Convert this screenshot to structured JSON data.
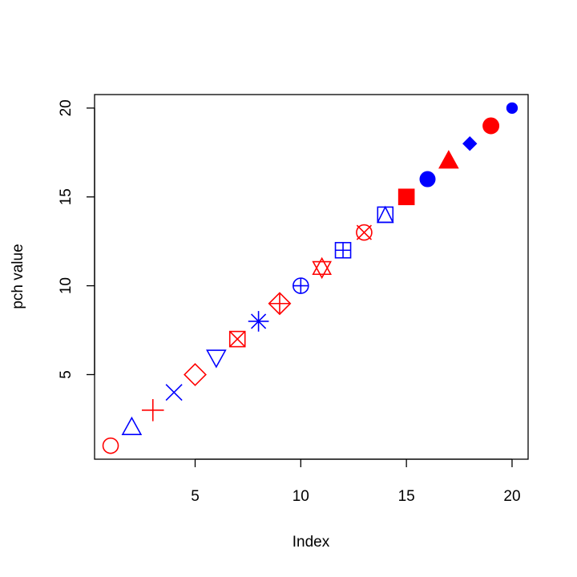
{
  "chart_data": {
    "type": "scatter",
    "title": "",
    "xlabel": "Index",
    "ylabel": "pch value",
    "xlim": [
      0.24,
      20.76
    ],
    "ylim": [
      0.24,
      20.76
    ],
    "x_ticks": [
      5,
      10,
      15,
      20
    ],
    "y_ticks": [
      5,
      10,
      15,
      20
    ],
    "grid": false,
    "legend": "none",
    "colors": {
      "red": "#FF0000",
      "blue": "#0000FF"
    },
    "points": [
      {
        "x": 1,
        "y": 1,
        "pch": 1,
        "color": "red"
      },
      {
        "x": 2,
        "y": 2,
        "pch": 2,
        "color": "blue"
      },
      {
        "x": 3,
        "y": 3,
        "pch": 3,
        "color": "red"
      },
      {
        "x": 4,
        "y": 4,
        "pch": 4,
        "color": "blue"
      },
      {
        "x": 5,
        "y": 5,
        "pch": 5,
        "color": "red"
      },
      {
        "x": 6,
        "y": 6,
        "pch": 6,
        "color": "blue"
      },
      {
        "x": 7,
        "y": 7,
        "pch": 7,
        "color": "red"
      },
      {
        "x": 8,
        "y": 8,
        "pch": 8,
        "color": "blue"
      },
      {
        "x": 9,
        "y": 9,
        "pch": 9,
        "color": "red"
      },
      {
        "x": 10,
        "y": 10,
        "pch": 10,
        "color": "blue"
      },
      {
        "x": 11,
        "y": 11,
        "pch": 11,
        "color": "red"
      },
      {
        "x": 12,
        "y": 12,
        "pch": 12,
        "color": "blue"
      },
      {
        "x": 13,
        "y": 13,
        "pch": 13,
        "color": "red"
      },
      {
        "x": 14,
        "y": 14,
        "pch": 14,
        "color": "blue"
      },
      {
        "x": 15,
        "y": 15,
        "pch": 15,
        "color": "red"
      },
      {
        "x": 16,
        "y": 16,
        "pch": 16,
        "color": "blue"
      },
      {
        "x": 17,
        "y": 17,
        "pch": 17,
        "color": "red"
      },
      {
        "x": 18,
        "y": 18,
        "pch": 18,
        "color": "blue"
      },
      {
        "x": 19,
        "y": 19,
        "pch": 19,
        "color": "red"
      },
      {
        "x": 20,
        "y": 20,
        "pch": 20,
        "color": "blue"
      }
    ]
  }
}
